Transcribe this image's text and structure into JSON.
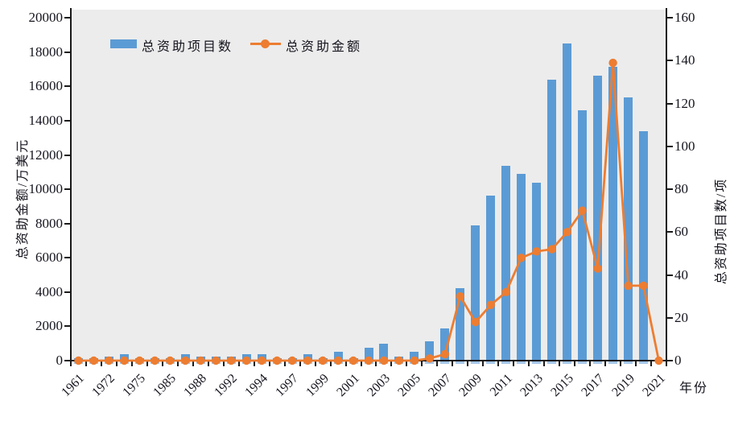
{
  "legend": {
    "bars_label": "总资助项目数",
    "line_label": "总资助金额"
  },
  "colors": {
    "bar": "#5b9bd5",
    "line": "#ed7d31",
    "plot_background": "#ececec",
    "axis": "#1a1a1a"
  },
  "chart_data": {
    "type": "bar",
    "title": "",
    "categories": [
      "1961",
      "",
      "1972",
      "",
      "1975",
      "",
      "1985",
      "",
      "1988",
      "",
      "1992",
      "",
      "1994",
      "",
      "1997",
      "",
      "1999",
      "",
      "2001",
      "",
      "2003",
      "",
      "2005",
      "",
      "2007",
      "",
      "2009",
      "",
      "2011",
      "",
      "2013",
      "",
      "2015",
      "",
      "2017",
      "",
      "2019",
      "",
      "2021"
    ],
    "series": [
      {
        "name": "总资助项目数",
        "type": "bar",
        "axis": "right",
        "unit": "项",
        "values": [
          1,
          1,
          2,
          3,
          1,
          1,
          1,
          3,
          2,
          2,
          2,
          3,
          3,
          1,
          1,
          3,
          1,
          4,
          1,
          6,
          8,
          2,
          4,
          9,
          15,
          34,
          63,
          77,
          91,
          87,
          83,
          131,
          148,
          117,
          133,
          137,
          123,
          107,
          0
        ]
      },
      {
        "name": "总资助金额",
        "type": "line",
        "axis": "left",
        "unit": "万美元",
        "values": [
          0,
          0,
          0,
          0,
          0,
          0,
          0,
          0,
          0,
          0,
          0,
          0,
          0,
          0,
          0,
          0,
          0,
          0,
          0,
          0,
          0,
          0,
          0,
          125,
          375,
          3750,
          2250,
          3250,
          4000,
          6000,
          6375,
          6500,
          7500,
          8750,
          5375,
          17375,
          4375,
          4375,
          0
        ]
      }
    ],
    "left_axis": {
      "label": "总资助金额/万美元",
      "min": 0,
      "max": 20000,
      "step": 2000
    },
    "right_axis": {
      "label": "总资助项目数/项",
      "min": 0,
      "max": 160,
      "step": 20
    },
    "x_axis": {
      "label": "年份"
    },
    "grid": false,
    "legend_position": "top-left-inside"
  }
}
